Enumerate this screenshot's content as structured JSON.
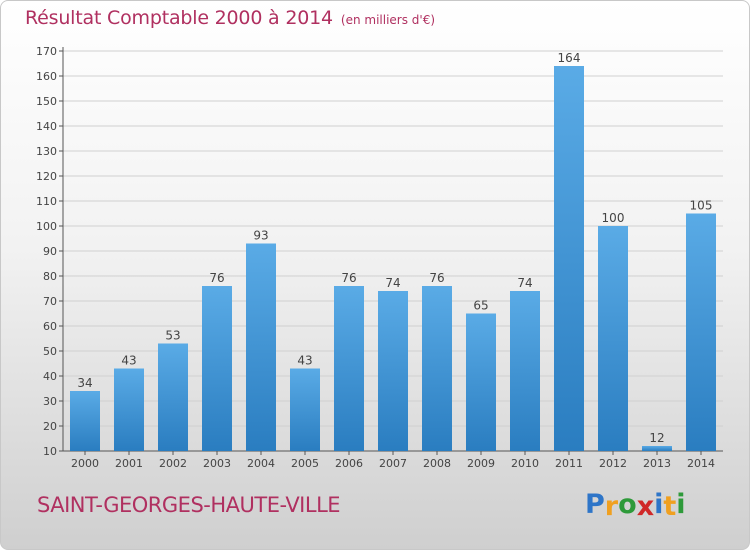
{
  "title": "Résultat Comptable 2000 à 2014",
  "subtitle": "(en milliers d'€)",
  "commune": "SAINT-GEORGES-HAUTE-VILLE",
  "logo": {
    "letters": [
      "P",
      "r",
      "o",
      "x",
      "i",
      "t",
      "i"
    ],
    "colors": [
      "#2e75c8",
      "#f0a020",
      "#2e9a3a",
      "#d02828",
      "#2e75c8",
      "#f0a020",
      "#2e9a3a"
    ]
  },
  "colors": {
    "bar_top": "#5aabe6",
    "bar_bottom": "#2a7dc0",
    "title": "#b03060",
    "grid": "#d0d0d0"
  },
  "chart_data": {
    "type": "bar",
    "title": "Résultat Comptable 2000 à 2014",
    "xlabel": "",
    "ylabel": "",
    "categories": [
      "2000",
      "2001",
      "2002",
      "2003",
      "2004",
      "2005",
      "2006",
      "2007",
      "2008",
      "2009",
      "2010",
      "2011",
      "2012",
      "2013",
      "2014"
    ],
    "values": [
      34,
      43,
      53,
      76,
      93,
      43,
      76,
      74,
      76,
      65,
      74,
      164,
      100,
      12,
      105
    ],
    "ylim": [
      10,
      170
    ],
    "yticks": [
      10,
      20,
      30,
      40,
      50,
      60,
      70,
      80,
      90,
      100,
      110,
      120,
      130,
      140,
      150,
      160,
      170
    ],
    "grid": "horizontal"
  }
}
